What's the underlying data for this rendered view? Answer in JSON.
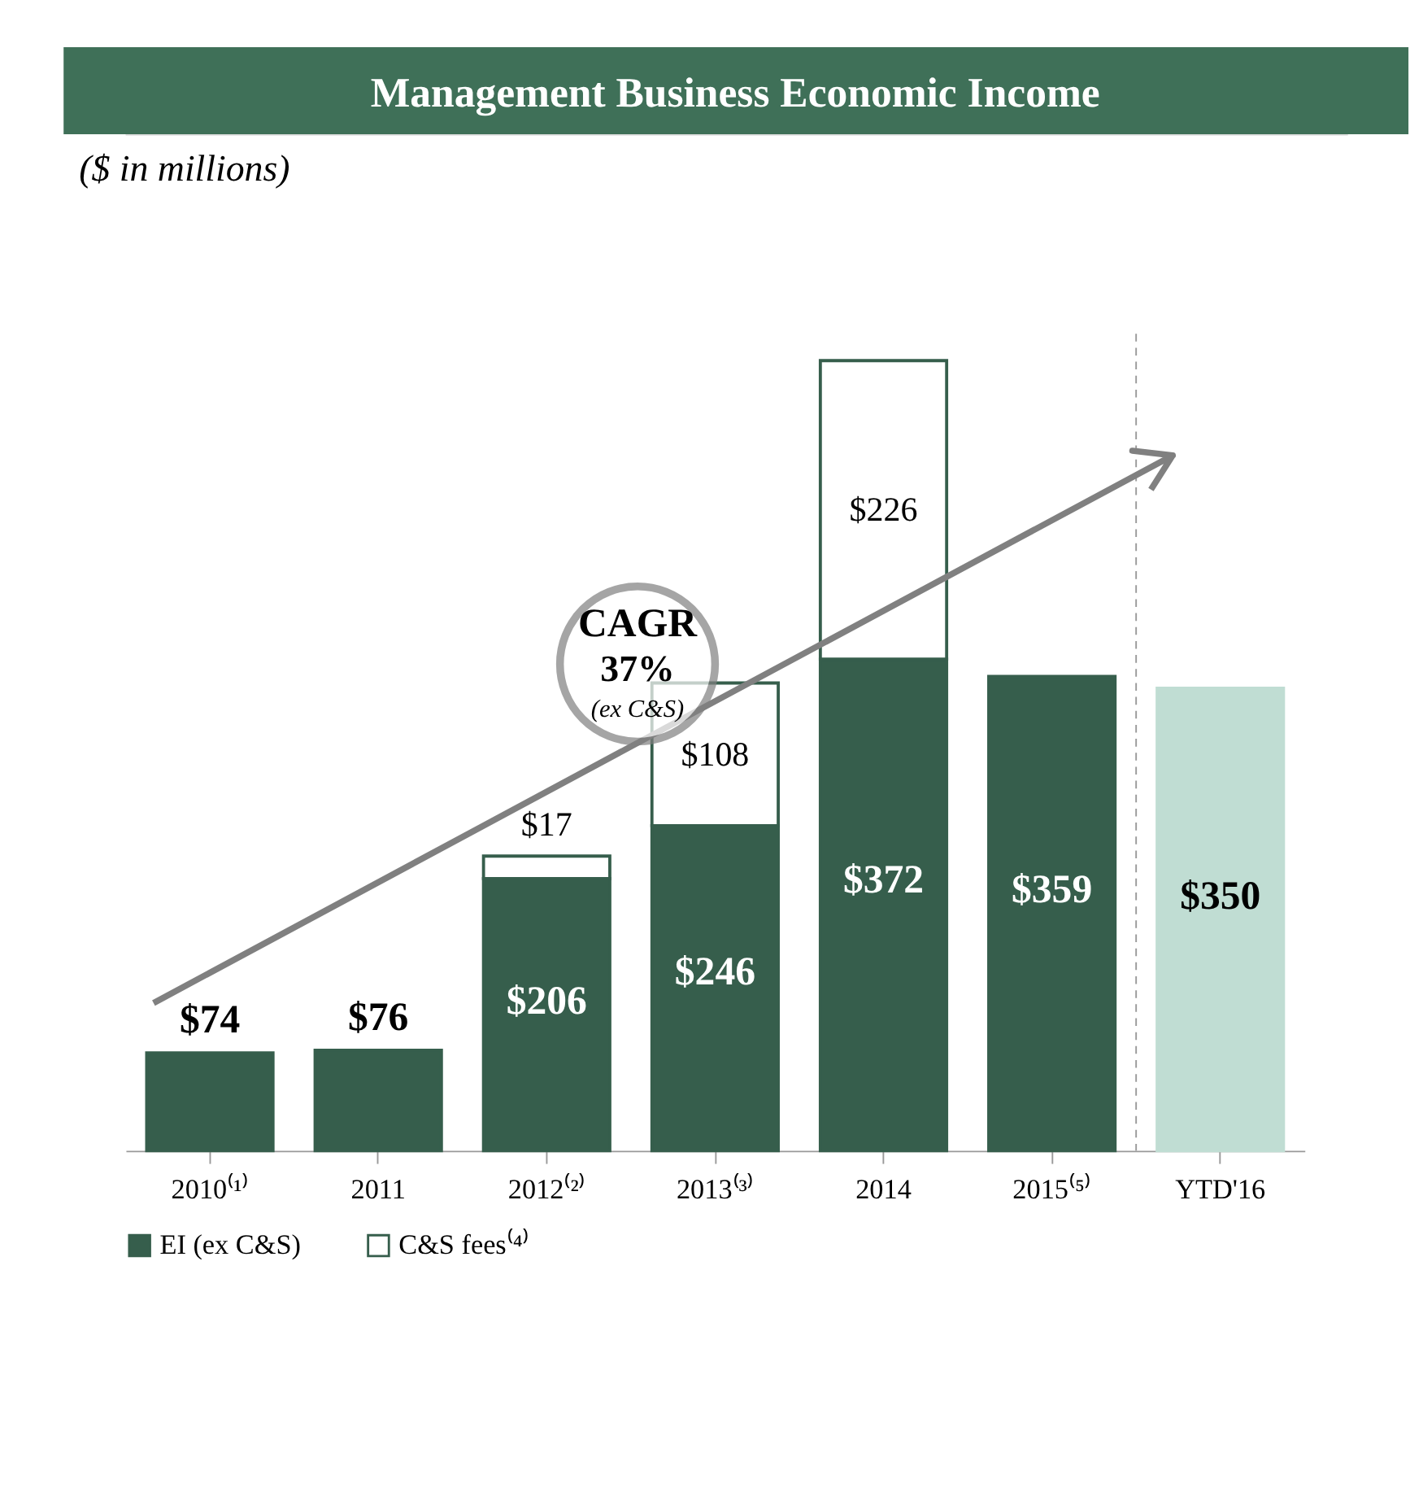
{
  "chart_data": {
    "type": "bar",
    "title": "Management Business Economic Income",
    "subtitle": "($ in millions)",
    "categories": [
      "2010⁽¹⁾",
      "2011",
      "2012⁽²⁾",
      "2013⁽³⁾",
      "2014",
      "2015⁽⁵⁾",
      "YTD'16"
    ],
    "stacked": true,
    "legend": "bottom",
    "series": [
      {
        "name": "EI (ex C&S)",
        "color": "#365e4c",
        "colors": [
          "#365e4c",
          "#365e4c",
          "#365e4c",
          "#365e4c",
          "#365e4c",
          "#365e4c",
          "#c0ddd3"
        ],
        "values": [
          74,
          76,
          206,
          246,
          372,
          359,
          350
        ],
        "value_labels": [
          "$74",
          "$76",
          "$206",
          "$246",
          "$372",
          "$359",
          "$350"
        ]
      },
      {
        "name": "C&S fees⁽⁴⁾",
        "color": "#ffffff",
        "values": [
          null,
          null,
          17,
          108,
          226,
          null,
          null
        ],
        "value_labels": [
          null,
          null,
          "$17",
          "$108",
          "$226",
          null,
          null
        ]
      }
    ],
    "annotations": [
      "CAGR",
      "37%",
      "(ex C&S)"
    ]
  }
}
